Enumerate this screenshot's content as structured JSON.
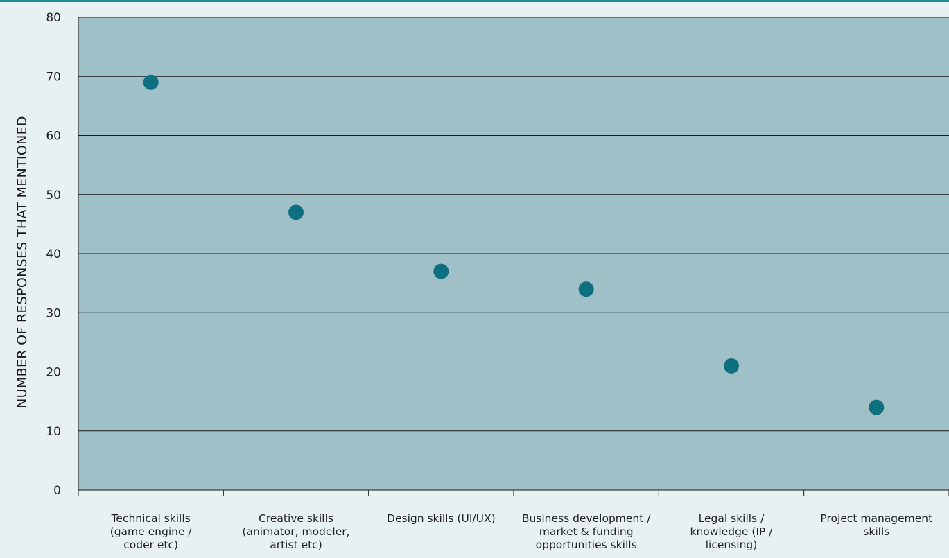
{
  "chart_data": {
    "type": "scatter",
    "ylabel": "NUMBER OF RESPONSES THAT MENTIONED",
    "xlabel": "",
    "title": "",
    "ylim": [
      0,
      80
    ],
    "yticks": [
      0,
      10,
      20,
      30,
      40,
      50,
      60,
      70,
      80
    ],
    "grid": true,
    "categories": [
      [
        "Technical skills",
        "(game engine /",
        "coder etc)"
      ],
      [
        "Creative skills",
        "(animator, modeler,",
        "artist etc)"
      ],
      [
        "Design skills (UI/UX)"
      ],
      [
        "Business development /",
        "market & funding",
        "opportunities skills"
      ],
      [
        "Legal skills /",
        "knowledge (IP /",
        "licensing)"
      ],
      [
        "Project management",
        "skills"
      ]
    ],
    "values": [
      69,
      47,
      37,
      34,
      21,
      14
    ],
    "colors": {
      "plot_background": "#a0c0c8",
      "marker": "#0e6f80",
      "gridline": "#1a1a1a",
      "page_background": "#e8f1f2"
    }
  }
}
